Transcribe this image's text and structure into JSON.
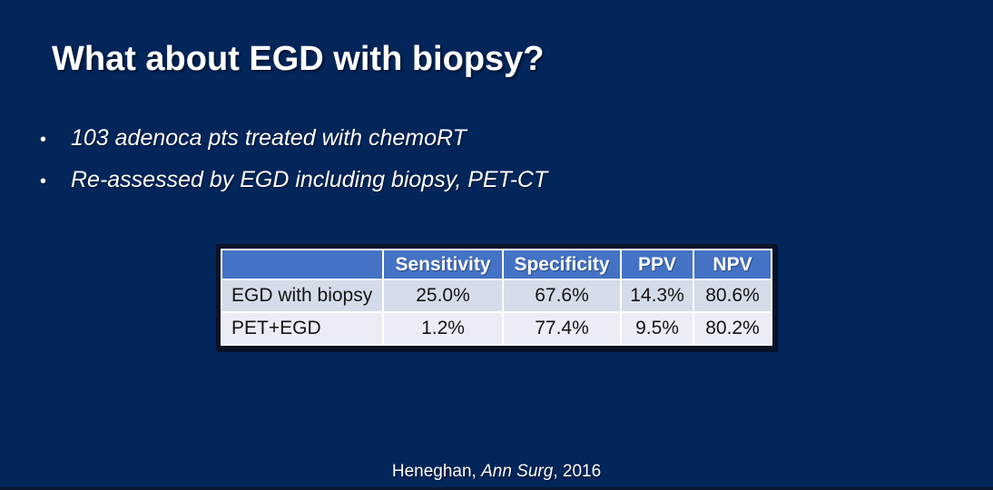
{
  "slide": {
    "title": "What about EGD with biopsy?",
    "bullets": {
      "0": "103 adenoca pts treated with chemoRT",
      "1": "Re-assessed by EGD including biopsy, PET-CT"
    },
    "bullet_glyph": "•",
    "citation": {
      "author": "Heneghan, ",
      "journal": "Ann Surg",
      "year": ", 2016"
    }
  },
  "table": {
    "headers": {
      "0": "",
      "1": "Sensitivity",
      "2": "Specificity",
      "3": "PPV",
      "4": "NPV"
    },
    "rows": {
      "0": {
        "label": "EGD with biopsy",
        "values": {
          "0": "25.0%",
          "1": "67.6%",
          "2": "14.3%",
          "3": "80.6%"
        }
      },
      "1": {
        "label": "PET+EGD",
        "values": {
          "0": "1.2%",
          "1": "77.4%",
          "2": "9.5%",
          "3": "80.2%"
        }
      }
    }
  },
  "colors": {
    "background": "#02255A",
    "header_bg": "#4472C4",
    "row_odd_bg": "#D5DCE9",
    "row_even_bg": "#EAEDF5",
    "table_border": "#0B1226",
    "grid_lines": "#FFFFFF",
    "title_text": "#FFFFFF",
    "body_text": "#FFFFFF",
    "table_text": "#141414"
  }
}
